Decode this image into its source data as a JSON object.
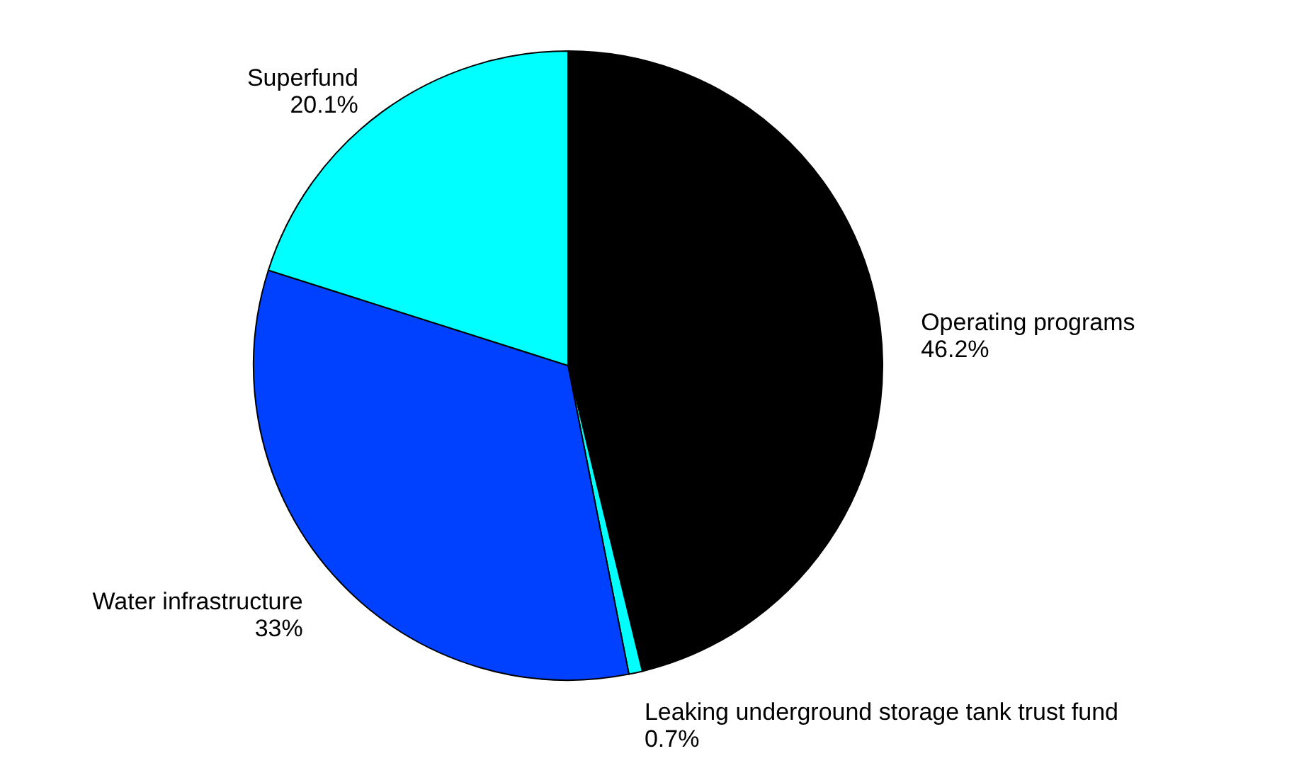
{
  "chart_data": {
    "type": "pie",
    "categories": [
      "Operating programs",
      "Leaking underground storage tank trust fund",
      "Water infrastructure",
      "Superfund"
    ],
    "values": [
      46.2,
      0.7,
      33,
      20.1
    ],
    "value_labels": [
      "46.2%",
      "0.7%",
      "33%",
      "20.1%"
    ],
    "colors": [
      "#000000",
      "#00ffff",
      "#0040ff",
      "#00ffff"
    ]
  }
}
